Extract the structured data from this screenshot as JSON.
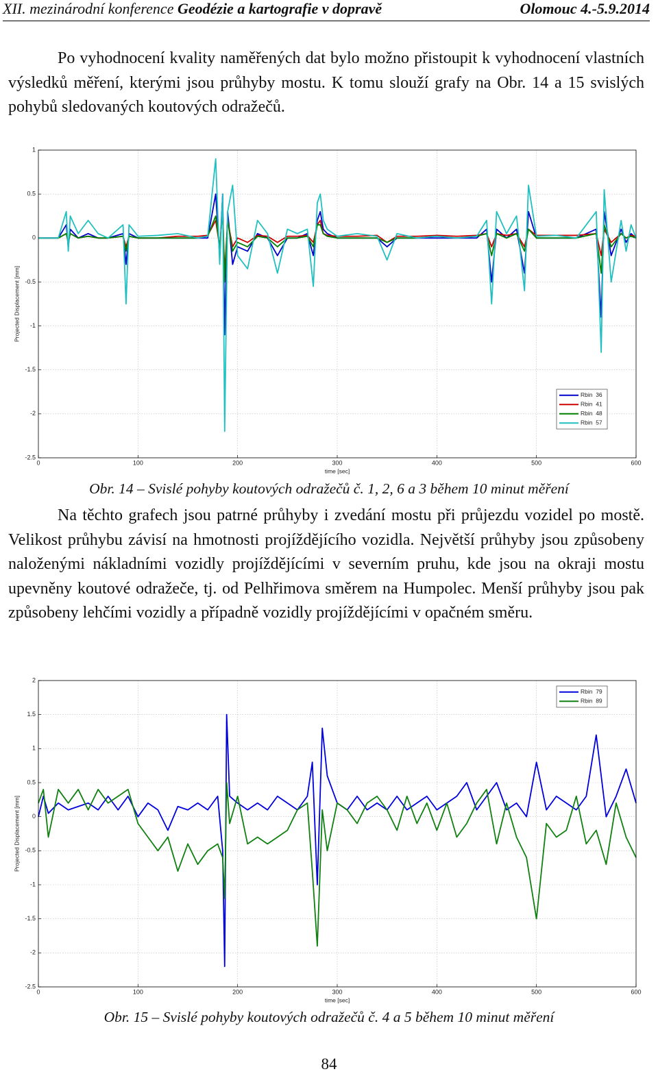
{
  "header": {
    "conference": "XII. mezinárodní konference",
    "title": "Geodézie a kartografie v dopravě",
    "place": "Olomouc 4.-5.9.2014"
  },
  "paragraphs": [
    "Po vyhodnocení kvality naměřených dat bylo možno přistoupit k vyhodnocení vlastních výsledků měření, kterými jsou průhyby mostu. K tomu slouží grafy na Obr. 14 a 15 svislých pohybů sledovaných koutových odražečů.",
    "Na těchto grafech jsou patrné průhyby i zvedání mostu při průjezdu vozidel po mostě. Velikost průhybu závisí na hmotnosti projíždějícího vozidla. Největší průhyby jsou způsobeny naloženými nákladními vozidly projíždějícími v severním pruhu, kde jsou na okraji mostu upevněny koutové odražeče, tj. od Pelhřimova směrem na Humpolec. Menší průhyby jsou pak způsobeny lehčími vozidly a případně vozidly projíždějícími v opačném směru."
  ],
  "captions": [
    "Obr. 14 – Svislé pohyby koutových odražečů č. 1, 2, 6 a 3 během 10 minut měření",
    "Obr. 15 – Svislé pohyby koutových odražečů č. 4 a 5 během 10 minut měření"
  ],
  "page_number": "84",
  "chart_data": [
    {
      "type": "line",
      "x_label": "time [sec]",
      "y_label": "Projected Displacement [mm]",
      "xlim": [
        0,
        600
      ],
      "ylim": [
        -2.5,
        1
      ],
      "xticks": [
        0,
        100,
        200,
        300,
        400,
        500,
        600
      ],
      "yticks": [
        -2.5,
        -2,
        -1.5,
        -1,
        -0.5,
        0,
        0.5,
        1
      ],
      "grid": true,
      "legend": "lower right",
      "x": [
        0,
        10,
        20,
        28,
        30,
        32,
        40,
        50,
        60,
        70,
        85,
        88,
        91,
        100,
        120,
        140,
        160,
        170,
        178,
        182,
        185,
        187,
        190,
        195,
        200,
        210,
        220,
        230,
        240,
        250,
        260,
        270,
        276,
        280,
        283,
        286,
        290,
        300,
        320,
        340,
        350,
        360,
        380,
        400,
        420,
        440,
        450,
        455,
        460,
        470,
        480,
        488,
        492,
        500,
        520,
        540,
        560,
        565,
        568,
        575,
        585,
        590,
        595,
        600
      ],
      "series": [
        {
          "name": "Rbin  36",
          "color": "#0000cc",
          "values": [
            0,
            0,
            0,
            0.15,
            -0.1,
            0.1,
            0,
            0.05,
            0,
            0,
            0.05,
            -0.3,
            0.05,
            0,
            0,
            0,
            0,
            0,
            0.5,
            -0.2,
            0.5,
            -1.1,
            0.3,
            -0.3,
            -0.1,
            -0.15,
            0.05,
            0,
            -0.2,
            0,
            0,
            0.05,
            -0.2,
            0.2,
            0.3,
            0.1,
            0.05,
            0,
            0,
            0,
            -0.1,
            0,
            0,
            0,
            0,
            0,
            0.1,
            -0.5,
            0.1,
            0,
            0.1,
            -0.4,
            0.3,
            0,
            0,
            0,
            0.1,
            -0.9,
            0.3,
            -0.2,
            0.1,
            -0.05,
            0.05,
            0
          ]
        },
        {
          "name": "Rbin  41",
          "color": "#cc0000",
          "values": [
            0,
            0,
            0,
            0.05,
            -0.05,
            0.05,
            0,
            0.02,
            0,
            0,
            0.02,
            -0.1,
            0.02,
            0,
            0,
            0.02,
            0.02,
            0.03,
            0.2,
            -0.1,
            0.3,
            -0.4,
            0.2,
            -0.1,
            0,
            -0.05,
            0.03,
            0.02,
            -0.05,
            0.02,
            0.02,
            0.03,
            -0.05,
            0.15,
            0.2,
            0.05,
            0.03,
            0.02,
            0.02,
            0.03,
            -0.05,
            0.02,
            0.02,
            0.03,
            0.02,
            0.03,
            0.05,
            -0.1,
            0.05,
            0.03,
            0.05,
            -0.1,
            0.1,
            0.03,
            0.03,
            0.03,
            0.05,
            -0.2,
            0.1,
            -0.05,
            0.05,
            0,
            0.03,
            0.02
          ]
        },
        {
          "name": "Rbin  48",
          "color": "#008000",
          "values": [
            0,
            0,
            0,
            0.05,
            -0.05,
            0.05,
            0,
            0.02,
            0,
            0,
            0.02,
            -0.15,
            0.02,
            0,
            0,
            0,
            0,
            0.02,
            0.25,
            -0.1,
            0.3,
            -0.5,
            0.2,
            -0.15,
            -0.05,
            -0.1,
            0.02,
            0,
            -0.1,
            0,
            0,
            0.02,
            -0.1,
            0.15,
            0.15,
            0.05,
            0.02,
            0,
            0,
            0,
            -0.05,
            0,
            0,
            0.02,
            0,
            0.02,
            0.05,
            -0.2,
            0.05,
            0,
            0.05,
            -0.15,
            0.1,
            0,
            0,
            0,
            0.05,
            -0.4,
            0.15,
            -0.1,
            0.05,
            0,
            0.02,
            0
          ]
        },
        {
          "name": "Rbin  57",
          "color": "#20c0c0",
          "values": [
            0,
            0,
            0,
            0.3,
            -0.15,
            0.25,
            0.05,
            0.2,
            0.05,
            0,
            0.15,
            -0.75,
            0.15,
            0.02,
            0.03,
            0.05,
            0,
            0.02,
            0.9,
            -0.3,
            0.5,
            -2.2,
            0.3,
            0.6,
            -0.2,
            -0.35,
            0.2,
            0.05,
            -0.4,
            0.1,
            0.05,
            0.1,
            -0.55,
            0.4,
            0.5,
            0.2,
            0.1,
            0.02,
            0.05,
            0.02,
            -0.25,
            0.05,
            0,
            0.02,
            0,
            0.02,
            0.2,
            -0.75,
            0.3,
            0.05,
            0.25,
            -0.6,
            0.6,
            0.02,
            0.03,
            0,
            0.3,
            -1.3,
            0.55,
            -0.5,
            0.2,
            -0.15,
            0.15,
            0
          ]
        }
      ]
    },
    {
      "type": "line",
      "x_label": "time [sec]",
      "y_label": "Projected Displacement [mm]",
      "xlim": [
        0,
        600
      ],
      "ylim": [
        -2.5,
        2
      ],
      "xticks": [
        0,
        100,
        200,
        300,
        400,
        500,
        600
      ],
      "yticks": [
        -2.5,
        -2,
        -1.5,
        -1,
        -0.5,
        0,
        0.5,
        1,
        1.5,
        2
      ],
      "grid": true,
      "legend": "upper right",
      "x": [
        0,
        5,
        10,
        20,
        30,
        40,
        50,
        60,
        70,
        80,
        90,
        100,
        110,
        120,
        130,
        140,
        150,
        160,
        170,
        180,
        185,
        187,
        189,
        192,
        200,
        210,
        220,
        230,
        240,
        250,
        260,
        270,
        275,
        280,
        285,
        290,
        300,
        310,
        320,
        330,
        340,
        350,
        360,
        370,
        380,
        390,
        400,
        410,
        420,
        430,
        440,
        450,
        460,
        470,
        480,
        490,
        500,
        510,
        520,
        530,
        540,
        550,
        560,
        570,
        580,
        590,
        600
      ],
      "series": [
        {
          "name": "Rbin  79",
          "color": "#0000dd",
          "values": [
            0,
            0.3,
            0.05,
            0.2,
            0.1,
            0.15,
            0.2,
            0.1,
            0.3,
            0.1,
            0.3,
            0,
            0.2,
            0.1,
            -0.2,
            0.15,
            0.1,
            0.2,
            0.1,
            0.3,
            -0.5,
            -2.2,
            1.5,
            0.3,
            0.2,
            0.1,
            0.2,
            0.1,
            0.3,
            0.2,
            0.1,
            0.3,
            0.8,
            -1.0,
            1.3,
            0.6,
            0.2,
            0.1,
            0.3,
            0.1,
            0.2,
            0.1,
            0.3,
            0.1,
            0.2,
            0.3,
            0.1,
            0.2,
            0.3,
            0.5,
            0.1,
            0.3,
            0.5,
            0.1,
            0.2,
            0,
            0.8,
            0.1,
            0.3,
            0.2,
            0.1,
            0.3,
            1.2,
            0,
            0.3,
            0.7,
            0.2
          ]
        },
        {
          "name": "Rbin  89",
          "color": "#108010",
          "values": [
            0.2,
            0.4,
            -0.3,
            0.4,
            0.2,
            0.4,
            0.1,
            0.4,
            0.2,
            0.3,
            0.4,
            -0.1,
            -0.3,
            -0.5,
            -0.3,
            -0.8,
            -0.4,
            -0.7,
            -0.5,
            -0.4,
            -0.6,
            -1.2,
            0.5,
            -0.1,
            0.3,
            -0.4,
            -0.3,
            -0.4,
            -0.3,
            -0.2,
            0.1,
            0.2,
            -0.8,
            -1.9,
            0.1,
            -0.5,
            0.2,
            0.1,
            -0.1,
            0.2,
            0.3,
            0.1,
            -0.2,
            0.3,
            -0.1,
            0.2,
            -0.2,
            0.2,
            -0.3,
            -0.1,
            0.2,
            0.4,
            -0.4,
            0.2,
            -0.3,
            -0.6,
            -1.5,
            -0.1,
            -0.3,
            -0.2,
            0.3,
            -0.4,
            -0.2,
            -0.7,
            0.2,
            -0.3,
            -0.6
          ]
        }
      ]
    }
  ]
}
